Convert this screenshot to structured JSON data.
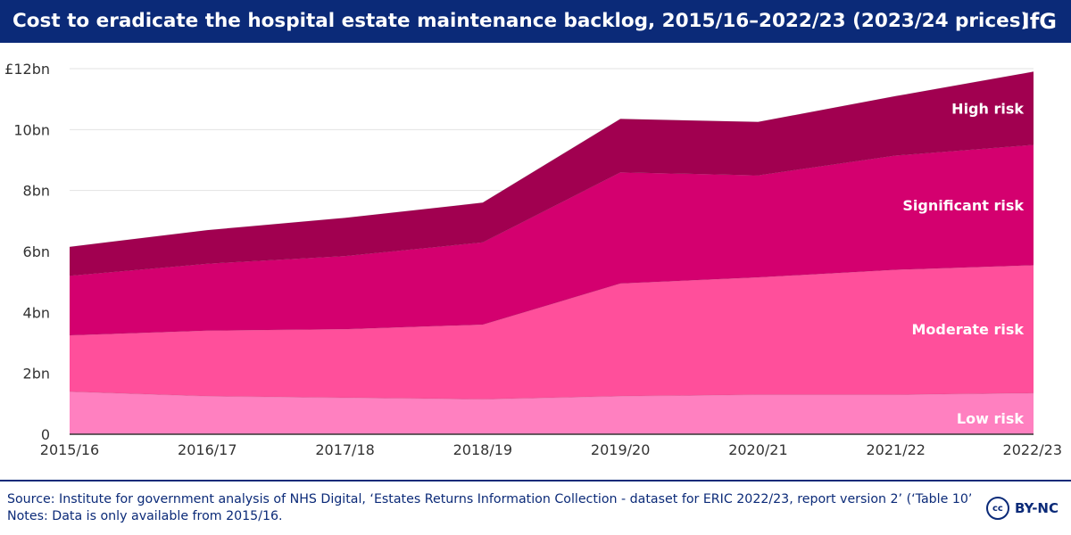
{
  "header": {
    "title": "Cost to eradicate the hospital estate maintenance backlog, 2015/16–2022/23 (2023/24 prices)",
    "logo": "IfG"
  },
  "footer": {
    "source": "Source: Institute for government analysis of NHS Digital, ‘Estates Returns Information Collection - dataset for ERIC 2022/23, report version 2’ (‘Table 10’). •",
    "notes": "Notes: Data is only available from 2015/16.",
    "license_icon": "cc",
    "license_text": "BY-NC"
  },
  "chart_data": {
    "type": "area",
    "stacked": true,
    "title": "Cost to eradicate the hospital estate maintenance backlog, 2015/16–2022/23 (2023/24 prices)",
    "xlabel": "",
    "ylabel": "",
    "categories": [
      "2015/16",
      "2016/17",
      "2017/18",
      "2018/19",
      "2019/20",
      "2020/21",
      "2021/22",
      "2022/23"
    ],
    "ylim": [
      0,
      12
    ],
    "yticks": [
      0,
      2,
      4,
      6,
      8,
      10,
      12
    ],
    "ytick_labels": [
      "0",
      "2bn",
      "4bn",
      "6bn",
      "8bn",
      "10bn",
      "£12bn"
    ],
    "grid": true,
    "legend": "inline-right",
    "series": [
      {
        "name": "Low risk",
        "color": "#ff80c0",
        "values": [
          1.4,
          1.25,
          1.2,
          1.15,
          1.25,
          1.3,
          1.3,
          1.35
        ]
      },
      {
        "name": "Moderate risk",
        "color": "#ff4f9b",
        "values": [
          1.85,
          2.15,
          2.25,
          2.45,
          3.7,
          3.85,
          4.1,
          4.2
        ]
      },
      {
        "name": "Significant risk",
        "color": "#d4006f",
        "values": [
          1.95,
          2.2,
          2.4,
          2.7,
          3.65,
          3.35,
          3.75,
          3.95
        ]
      },
      {
        "name": "High risk",
        "color": "#a10050",
        "values": [
          0.95,
          1.1,
          1.25,
          1.3,
          1.75,
          1.75,
          1.95,
          2.4
        ]
      }
    ]
  }
}
